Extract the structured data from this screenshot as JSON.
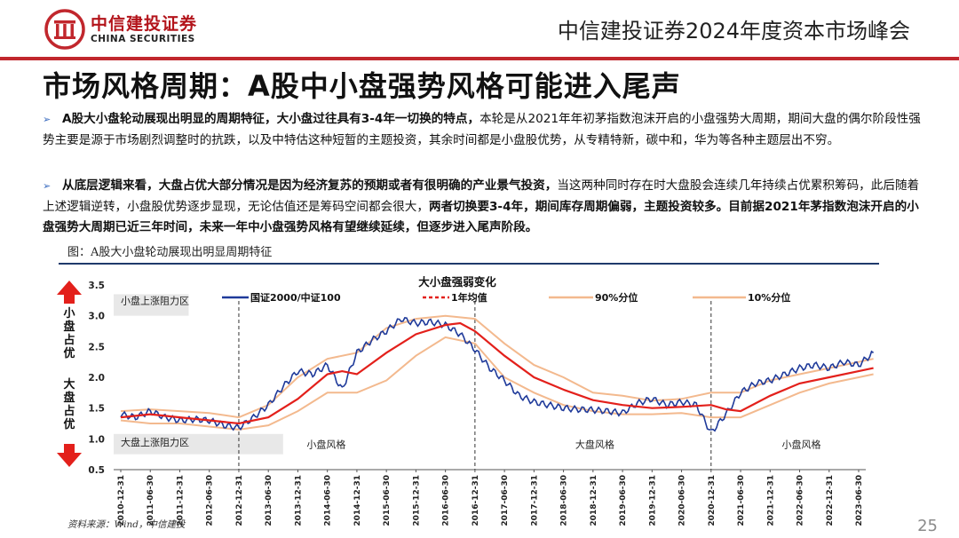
{
  "header": {
    "brand_cn": "中信建投证券",
    "brand_en": "CHINA SECURITIES",
    "conference": "中信建投证券2024年度资本市场峰会"
  },
  "title": "市场风格周期：A股中小盘强势风格可能进入尾声",
  "bullets": [
    {
      "bold": "A股大小盘轮动展现出明显的周期特征，大小盘过往具有3-4年一切换的特点，",
      "text": "本轮是从2021年年初茅指数泡沫开启的小盘强势大周期，期间大盘的偶尔阶段性强势主要是源于市场剧烈调整时的抗跌，以及中特估这种短暂的主题投资，其余时间都是小盘股优势，从专精特新，碳中和，华为等各种主题层出不穷。"
    },
    {
      "bold": "从底层逻辑来看，大盘占优大部分情况是因为经济复苏的预期或者有很明确的产业景气投资，",
      "text": "当这两种同时存在时大盘股会连续几年持续占优累积筹码，此后随着上述逻辑逆转，小盘股优势逐步显现，无论估值还是筹码空间都会很大，",
      "bold2": "两者切换要3-4年，期间库存周期偏弱，主题投资较多。目前据2021年茅指数泡沫开启的小盘强势大周期已近三年时间，未来一年中小盘强势风格有望继续延续，但逐步进入尾声阶段。"
    }
  ],
  "figure_caption": "图：A股大小盘轮动展现出明显周期特征",
  "source": "资料来源：Wind，中信建投",
  "page_number": "25",
  "colors": {
    "brand_red": "#c1272d",
    "index_line": "#1f3a9a",
    "ma_line": "#e3201b",
    "band": "#f3b98e",
    "arrow": "#e3201b"
  },
  "chart_data": {
    "type": "line",
    "title": "大小盘强弱变化",
    "ylim": [
      0.5,
      3.5
    ],
    "yticks": [
      "0.5",
      "1.0",
      "1.5",
      "2.0",
      "2.5",
      "3.0",
      "3.5"
    ],
    "y_side_labels": {
      "top": "小盘占优",
      "bottom": "大盘占优"
    },
    "x_ticks": [
      "2010-12-31",
      "2011-06-30",
      "2011-12-31",
      "2012-06-30",
      "2012-12-31",
      "2013-06-30",
      "2013-12-31",
      "2014-06-30",
      "2014-12-31",
      "2015-06-30",
      "2015-12-31",
      "2016-06-30",
      "2016-12-31",
      "2017-06-30",
      "2017-12-31",
      "2018-06-30",
      "2018-12-31",
      "2019-06-30",
      "2019-12-31",
      "2020-06-30",
      "2020-12-31",
      "2021-06-30",
      "2021-12-31",
      "2022-06-30",
      "2022-12-31",
      "2023-06-30"
    ],
    "legend": [
      "国证2000/中证100",
      "1年均值",
      "90%分位",
      "10%分位"
    ],
    "annotations": [
      {
        "text": "小盘上涨阻力区",
        "x": 0.0,
        "y": 3.25
      },
      {
        "text": "大盘上涨阻力区",
        "x": 0.0,
        "y": 0.95
      },
      {
        "text": "小盘风格",
        "x": 6.9,
        "y": 0.85
      },
      {
        "text": "大盘风格",
        "x": 16.0,
        "y": 0.85
      },
      {
        "text": "小盘风格",
        "x": 23.0,
        "y": 0.85
      }
    ],
    "dividers_x": [
      4.0,
      12.0,
      20.0
    ],
    "series": [
      {
        "name": "国证2000/中证100",
        "x": [
          0,
          0.5,
          1,
          1.5,
          2,
          2.5,
          3,
          3.5,
          4,
          4.5,
          5,
          5.5,
          6,
          6.5,
          7,
          7.5,
          8,
          8.5,
          9,
          9.5,
          10,
          10.5,
          11,
          11.5,
          12,
          12.5,
          13,
          13.5,
          14,
          14.5,
          15,
          15.5,
          16,
          16.5,
          17,
          17.5,
          18,
          18.5,
          19,
          19.5,
          20,
          20.5,
          21,
          21.5,
          22,
          22.5,
          23,
          23.5,
          24,
          24.5,
          25,
          25.5
        ],
        "values": [
          1.4,
          1.35,
          1.45,
          1.35,
          1.3,
          1.32,
          1.3,
          1.22,
          1.18,
          1.35,
          1.55,
          1.85,
          2.1,
          2.05,
          2.2,
          1.8,
          2.4,
          2.6,
          2.75,
          2.95,
          2.88,
          2.9,
          2.85,
          2.7,
          2.45,
          2.15,
          1.95,
          1.7,
          1.6,
          1.55,
          1.5,
          1.48,
          1.47,
          1.45,
          1.42,
          1.58,
          1.65,
          1.55,
          1.6,
          1.55,
          1.1,
          1.4,
          1.75,
          1.9,
          1.95,
          2.05,
          2.15,
          2.2,
          2.15,
          2.25,
          2.2,
          2.4
        ]
      },
      {
        "name": "1年均值",
        "x": [
          0,
          1,
          2,
          3,
          4,
          5,
          6,
          7,
          7.5,
          8,
          9,
          10,
          11,
          11.5,
          12,
          13,
          14,
          15,
          16,
          17,
          18,
          19,
          20,
          20.5,
          21,
          22,
          23,
          24,
          25,
          25.5
        ],
        "values": [
          1.35,
          1.4,
          1.35,
          1.3,
          1.25,
          1.35,
          1.65,
          2.05,
          2.1,
          2.05,
          2.4,
          2.7,
          2.85,
          2.88,
          2.75,
          2.35,
          2.0,
          1.8,
          1.63,
          1.55,
          1.5,
          1.52,
          1.55,
          1.48,
          1.45,
          1.7,
          1.9,
          2.0,
          2.1,
          2.15
        ]
      },
      {
        "name": "90%分位",
        "x": [
          0,
          1,
          2,
          3,
          4,
          5,
          6,
          7,
          8,
          9,
          10,
          11,
          12,
          13,
          14,
          15,
          16,
          17,
          18,
          19,
          20,
          21,
          22,
          23,
          24,
          25,
          25.5
        ],
        "values": [
          1.45,
          1.48,
          1.45,
          1.42,
          1.35,
          1.55,
          2.0,
          2.3,
          2.4,
          2.8,
          2.95,
          3.0,
          2.95,
          2.55,
          2.2,
          2.0,
          1.75,
          1.7,
          1.62,
          1.65,
          1.75,
          1.75,
          1.95,
          2.05,
          2.15,
          2.25,
          2.3
        ]
      },
      {
        "name": "10%分位",
        "x": [
          0,
          1,
          2,
          3,
          4,
          5,
          6,
          7,
          8,
          9,
          10,
          11,
          12,
          13,
          14,
          15,
          16,
          17,
          18,
          19,
          20,
          21,
          22,
          23,
          24,
          25,
          25.5
        ],
        "values": [
          1.3,
          1.25,
          1.25,
          1.2,
          1.15,
          1.22,
          1.45,
          1.75,
          1.75,
          1.95,
          2.35,
          2.65,
          2.55,
          2.0,
          1.75,
          1.55,
          1.45,
          1.4,
          1.4,
          1.42,
          1.35,
          1.35,
          1.55,
          1.75,
          1.9,
          2.0,
          2.05
        ]
      }
    ]
  }
}
